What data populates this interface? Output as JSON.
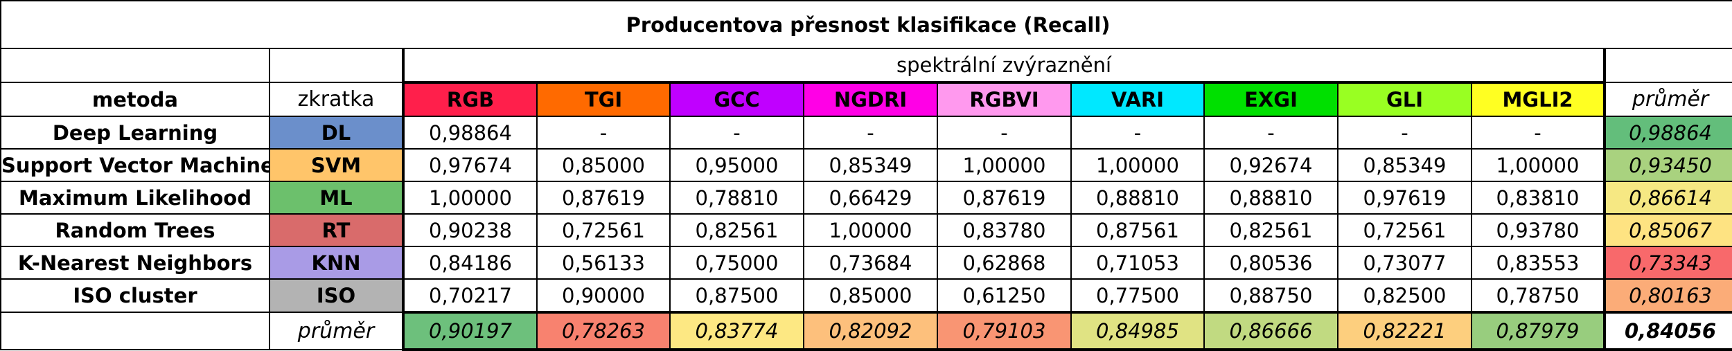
{
  "title": "Producentova přesnost klasifikace (Recall)",
  "group_header": "spektrální zvýraznění",
  "col_headers": {
    "method": "metoda",
    "abbr": "zkratka",
    "mean": "průměr"
  },
  "bands": [
    {
      "label": "RGB",
      "color": "#ff1f4b"
    },
    {
      "label": "TGI",
      "color": "#ff6a00"
    },
    {
      "label": "GCC",
      "color": "#c000ff"
    },
    {
      "label": "NGDRI",
      "color": "#ff00e6"
    },
    {
      "label": "RGBVI",
      "color": "#ff99ee"
    },
    {
      "label": "VARI",
      "color": "#00e8ff"
    },
    {
      "label": "EXGI",
      "color": "#00e000"
    },
    {
      "label": "GLI",
      "color": "#99ff22"
    },
    {
      "label": "MGLI2",
      "color": "#ffff22"
    }
  ],
  "rows": [
    {
      "method": "Deep Learning",
      "abbr": "DL",
      "abbr_color": "#6b8fcb",
      "values": [
        "0,98864",
        "-",
        "-",
        "-",
        "-",
        "-",
        "-",
        "-",
        "-"
      ],
      "mean": "0,98864",
      "mean_color": "#63be7b"
    },
    {
      "method": "Support Vector Machine",
      "abbr": "SVM",
      "abbr_color": "#ffc56a",
      "values": [
        "0,97674",
        "0,85000",
        "0,95000",
        "0,85349",
        "1,00000",
        "1,00000",
        "0,92674",
        "0,85349",
        "1,00000"
      ],
      "mean": "0,93450",
      "mean_color": "#a9d27f"
    },
    {
      "method": "Maximum Likelihood",
      "abbr": "ML",
      "abbr_color": "#6cc06c",
      "values": [
        "1,00000",
        "0,87619",
        "0,78810",
        "0,66429",
        "0,87619",
        "0,88810",
        "0,88810",
        "0,97619",
        "0,83810"
      ],
      "mean": "0,86614",
      "mean_color": "#f6e883"
    },
    {
      "method": "Random Trees",
      "abbr": "RT",
      "abbr_color": "#d96b6b",
      "values": [
        "0,90238",
        "0,72561",
        "0,82561",
        "1,00000",
        "0,83780",
        "0,87561",
        "0,82561",
        "0,72561",
        "0,93780"
      ],
      "mean": "0,85067",
      "mean_color": "#fee382"
    },
    {
      "method": "K-Nearest Neighbors",
      "abbr": "KNN",
      "abbr_color": "#a99be6",
      "values": [
        "0,84186",
        "0,56133",
        "0,75000",
        "0,73684",
        "0,62868",
        "0,71053",
        "0,80536",
        "0,73077",
        "0,83553"
      ],
      "mean": "0,73343",
      "mean_color": "#f8696b"
    },
    {
      "method": "ISO cluster",
      "abbr": "ISO",
      "abbr_color": "#b3b3b3",
      "values": [
        "0,70217",
        "0,90000",
        "0,87500",
        "0,85000",
        "0,61250",
        "0,77500",
        "0,88750",
        "0,82500",
        "0,78750"
      ],
      "mean": "0,80163",
      "mean_color": "#fbac78"
    }
  ],
  "mean_row": {
    "label": "průměr",
    "values": [
      "0,90197",
      "0,78263",
      "0,83774",
      "0,82092",
      "0,79103",
      "0,84985",
      "0,86666",
      "0,82221",
      "0,87979"
    ],
    "colors": [
      "#6dc07c",
      "#f8826f",
      "#fde883",
      "#fdc07c",
      "#f99573",
      "#e0e383",
      "#c1da81",
      "#fdcf7e",
      "#98cd7e"
    ],
    "overall": "0,84056"
  }
}
